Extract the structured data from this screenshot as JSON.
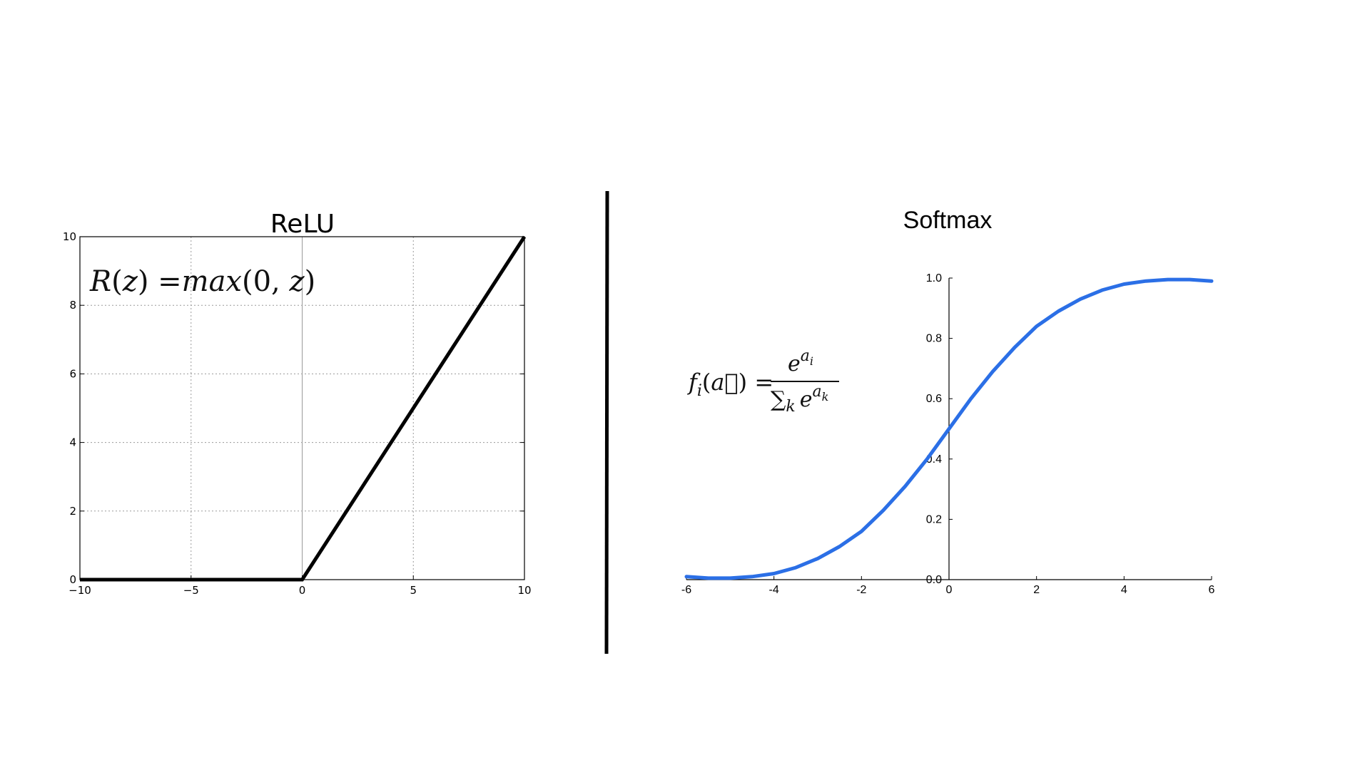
{
  "chart_data": [
    {
      "type": "line",
      "title": "ReLU",
      "annotation": "R(z) = max(0,  z)",
      "xlim": [
        -10,
        10
      ],
      "ylim": [
        0,
        10
      ],
      "x_ticks": [
        -10,
        -5,
        0,
        5,
        10
      ],
      "x_tick_labels": [
        "−10",
        "−5",
        "0",
        "5",
        "10"
      ],
      "y_ticks": [
        0,
        2,
        4,
        6,
        8,
        10
      ],
      "y_tick_labels": [
        "0",
        "2",
        "4",
        "6",
        "8",
        "10"
      ],
      "grid": true,
      "series": [
        {
          "x": [
            -10,
            0,
            10
          ],
          "y": [
            0,
            0,
            10
          ],
          "color": "#000000"
        }
      ]
    },
    {
      "type": "line",
      "title": "Softmax",
      "formula": {
        "lhs": "f_i(a⃗) =",
        "numerator": "e^{a_i}",
        "denominator": "∑_k e^{a_k}"
      },
      "xlim": [
        -6,
        6
      ],
      "ylim": [
        0,
        1
      ],
      "x_ticks": [
        -6,
        -4,
        -2,
        0,
        2,
        4,
        6
      ],
      "x_tick_labels": [
        "-6",
        "-4",
        "-2",
        "0",
        "2",
        "4",
        "6"
      ],
      "y_ticks": [
        0,
        0.2,
        0.4,
        0.6,
        0.8,
        1.0
      ],
      "y_tick_labels": [
        "0.0",
        "0.2",
        "0.4",
        "0.6",
        "0.8",
        "1.0"
      ],
      "grid": false,
      "series": [
        {
          "x": [
            -6,
            -5.5,
            -5,
            -4.5,
            -4,
            -3.5,
            -3,
            -2.5,
            -2,
            -1.5,
            -1,
            -0.5,
            0,
            0.5,
            1,
            1.5,
            2,
            2.5,
            3,
            3.5,
            4,
            4.5,
            5,
            5.5,
            6
          ],
          "y": [
            0.01,
            0.005,
            0.005,
            0.01,
            0.02,
            0.04,
            0.07,
            0.11,
            0.16,
            0.23,
            0.31,
            0.4,
            0.5,
            0.6,
            0.69,
            0.77,
            0.84,
            0.89,
            0.93,
            0.96,
            0.98,
            0.99,
            0.995,
            0.995,
            0.99
          ],
          "color": "#2b6fe6"
        }
      ]
    }
  ]
}
